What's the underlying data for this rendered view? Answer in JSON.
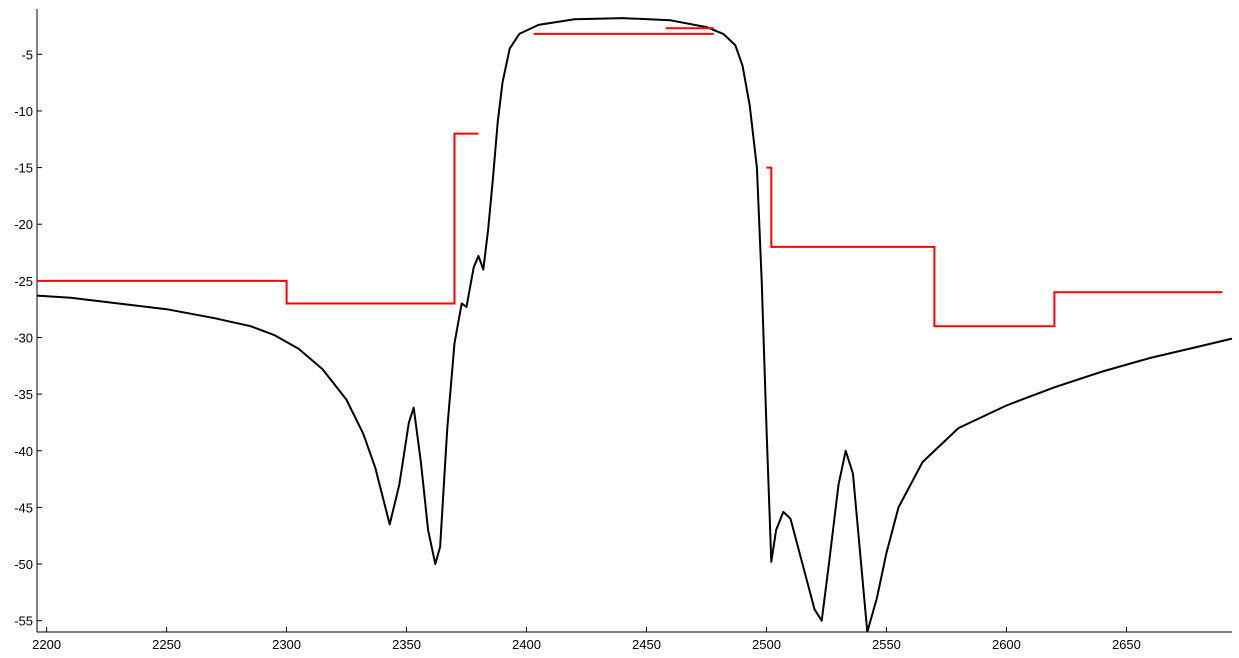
{
  "chart_data": {
    "type": "line",
    "title": "",
    "xlabel": "",
    "ylabel": "",
    "xlim": [
      2196,
      2694
    ],
    "ylim": [
      -56,
      -1
    ],
    "x_ticks": [
      2200,
      2250,
      2300,
      2350,
      2400,
      2450,
      2500,
      2550,
      2600,
      2650
    ],
    "x_tick_labels": [
      "2200",
      "2250",
      "2300",
      "2350",
      "2400",
      "2450",
      "2500",
      "2550",
      "2600",
      "2650"
    ],
    "y_ticks": [
      -5,
      -10,
      -15,
      -20,
      -25,
      -30,
      -35,
      -40,
      -45,
      -50,
      -55
    ],
    "y_tick_labels": [
      "-5",
      "-10",
      "-15",
      "-20",
      "-25",
      "-30",
      "-35",
      "-40",
      "-45",
      "-50",
      "-55"
    ],
    "grid": false,
    "legend": "none",
    "series": [
      {
        "color": "#000000",
        "x": [
          2196,
          2210,
          2230,
          2250,
          2270,
          2285,
          2295,
          2305,
          2315,
          2325,
          2332,
          2337,
          2340,
          2343,
          2347,
          2351,
          2353,
          2356,
          2359,
          2362,
          2364,
          2367,
          2370,
          2373,
          2375,
          2378,
          2380,
          2382,
          2384,
          2386,
          2388,
          2390,
          2393,
          2397,
          2405,
          2420,
          2440,
          2460,
          2475,
          2482,
          2487,
          2490,
          2493,
          2496,
          2498,
          2500,
          2502,
          2504,
          2507,
          2510,
          2515,
          2520,
          2523,
          2526,
          2530,
          2533,
          2536,
          2539,
          2542,
          2546,
          2550,
          2555,
          2565,
          2580,
          2600,
          2620,
          2640,
          2660,
          2680,
          2694
        ],
        "y": [
          -26.3,
          -26.5,
          -27.0,
          -27.5,
          -28.3,
          -29.0,
          -29.8,
          -31.0,
          -32.8,
          -35.5,
          -38.5,
          -41.5,
          -44.0,
          -46.5,
          -43.0,
          -37.5,
          -36.2,
          -41.0,
          -47.0,
          -50.0,
          -48.5,
          -38.0,
          -30.5,
          -27.0,
          -27.3,
          -23.8,
          -22.8,
          -24.0,
          -20.5,
          -16.0,
          -11.0,
          -7.5,
          -4.5,
          -3.2,
          -2.4,
          -1.9,
          -1.8,
          -2.0,
          -2.6,
          -3.2,
          -4.2,
          -6.0,
          -9.5,
          -15.0,
          -25.0,
          -38.0,
          -49.8,
          -47.0,
          -45.4,
          -46.0,
          -50.0,
          -54.0,
          -55.0,
          -50.0,
          -43.0,
          -40.0,
          -42.0,
          -49.0,
          -56.0,
          -53.0,
          -49.0,
          -45.0,
          -41.0,
          -38.0,
          -36.0,
          -34.4,
          -33.0,
          -31.8,
          -30.8,
          -30.1
        ]
      },
      {
        "color": "#ff0000",
        "segments": [
          {
            "x": [
              2196,
              2300,
              2300,
              2370,
              2370,
              2380
            ],
            "y": [
              -25,
              -25,
              -27,
              -27,
              -12,
              -12
            ]
          },
          {
            "x": [
              2403,
              2478
            ],
            "y": [
              -3.2,
              -3.2
            ]
          },
          {
            "x": [
              2458,
              2478
            ],
            "y": [
              -2.7,
              -2.7
            ]
          },
          {
            "x": [
              2500,
              2502,
              2502,
              2570,
              2570,
              2620,
              2620,
              2690
            ],
            "y": [
              -15,
              -15,
              -22,
              -22,
              -29,
              -29,
              -26,
              -26
            ]
          }
        ]
      }
    ]
  }
}
